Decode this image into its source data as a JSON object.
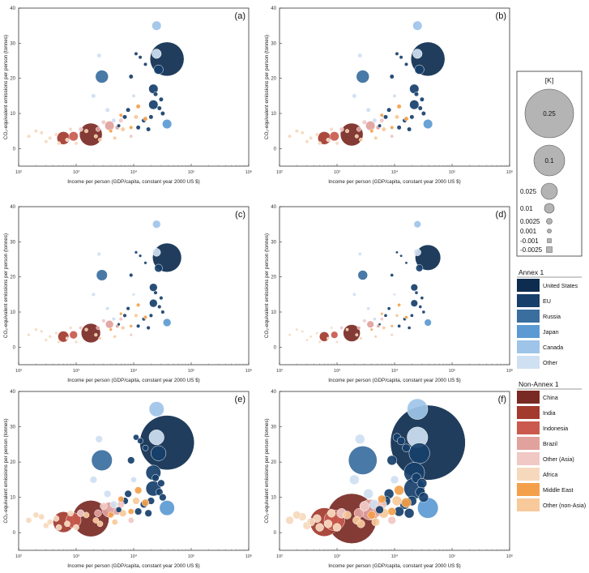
{
  "colors": {
    "us": "#0d2c4f",
    "eu": "#163f6b",
    "russia": "#3a6e9e",
    "japan": "#5c9ad3",
    "canada": "#9ec4e9",
    "other_a1": "#cfe0f2",
    "china": "#7a2a24",
    "india": "#a33a2e",
    "indonesia": "#c95a4d",
    "brazil": "#e1a19c",
    "other_asia": "#f0c8c4",
    "africa": "#f6d9bd",
    "middle_east": "#f4a04a",
    "other_nonasia": "#f8c99a"
  },
  "legend_k": {
    "title": "[K]",
    "entries": [
      "0.25",
      "0.1",
      "0.025",
      "0.01",
      "0.0025",
      "0.001",
      "-0.001",
      "-0.0025"
    ]
  },
  "legend_annex1": {
    "title": "Annex 1",
    "entries": [
      "United States",
      "EU",
      "Russia",
      "Japan",
      "Canada",
      "Other"
    ]
  },
  "legend_nonannex1": {
    "title": "Non-Annex 1",
    "entries": [
      "China",
      "India",
      "Indonesia",
      "Brazil",
      "Other (Asia)",
      "Africa",
      "Middle East",
      "Other (non-Asia)"
    ]
  },
  "chart_data": [
    {
      "type": "scatter",
      "panel": "(a)",
      "xlabel": "Income per person (GDP/capita, constant year 2000 US $)",
      "ylabel": "CO₂-equivalent emissions per person (tonnes)",
      "xscale": "log",
      "xlim": [
        100,
        1000000
      ],
      "ylim": [
        -5,
        40
      ],
      "xticks": [
        "10²",
        "10³",
        "10⁴",
        "10⁵",
        "10⁶"
      ],
      "yticks": [
        "0",
        "10",
        "20",
        "30",
        "40"
      ],
      "size_scale": 1.0
    },
    {
      "type": "scatter",
      "panel": "(b)",
      "xlabel": "Income per person (GDP/capita, constant year 2000 US $)",
      "ylabel": "CO₂-equivalent emissions per person (tonnes)",
      "xscale": "log",
      "xlim": [
        100,
        1000000
      ],
      "ylim": [
        -5,
        40
      ],
      "xticks": [
        "10²",
        "10³",
        "10⁴",
        "10⁵",
        "10⁶"
      ],
      "yticks": [
        "0",
        "10",
        "20",
        "30",
        "40"
      ],
      "size_scale": 1.0
    },
    {
      "type": "scatter",
      "panel": "(c)",
      "xlabel": "Income per person (GDP/capita, constant year 2000 US $)",
      "ylabel": "CO₂-equivalent emissions per person (tonnes)",
      "xscale": "log",
      "xlim": [
        100,
        1000000
      ],
      "ylim": [
        -5,
        40
      ],
      "xticks": [
        "10²",
        "10³",
        "10⁴",
        "10⁵",
        "10⁶"
      ],
      "yticks": [
        "0",
        "10",
        "20",
        "30",
        "40"
      ],
      "size_scale": 0.85
    },
    {
      "type": "scatter",
      "panel": "(d)",
      "xlabel": "Income per person (GDP/capita, constant year 2000 US $)",
      "ylabel": "CO₂-equivalent emissions per person (tonnes)",
      "xscale": "log",
      "xlim": [
        100,
        1000000
      ],
      "ylim": [
        -5,
        40
      ],
      "xticks": [
        "10²",
        "10³",
        "10⁴",
        "10⁵",
        "10⁶"
      ],
      "yticks": [
        "0",
        "10",
        "20",
        "30",
        "40"
      ],
      "size_scale": 0.75
    },
    {
      "type": "scatter",
      "panel": "(e)",
      "xlabel": "Income per person (GDP/capita, constant year 2000 US $)",
      "ylabel": "CO₂-equivalent emissions per person (tonnes)",
      "xscale": "log",
      "xlim": [
        100,
        1000000
      ],
      "ylim": [
        -5,
        40
      ],
      "xticks": [
        "10²",
        "10³",
        "10⁴",
        "10⁵",
        "10⁶"
      ],
      "yticks": [
        "0",
        "10",
        "20",
        "30",
        "40"
      ],
      "size_scale": 1.6
    },
    {
      "type": "scatter",
      "panel": "(f)",
      "xlabel": "Income per person (GDP/capita, constant year 2000 US $)",
      "ylabel": "CO₂-equivalent emissions per person (tonnes)",
      "xscale": "log",
      "xlim": [
        100,
        1000000
      ],
      "ylim": [
        -5,
        40
      ],
      "xticks": [
        "10²",
        "10³",
        "10⁴",
        "10⁵",
        "10⁶"
      ],
      "yticks": [
        "0",
        "10",
        "20",
        "30",
        "40"
      ],
      "size_scale": 2.2
    }
  ],
  "points": [
    {
      "group": "us",
      "x": 38000,
      "y": 25.5,
      "k": 0.25
    },
    {
      "group": "canada",
      "x": 25000,
      "y": 35,
      "k": 0.01
    },
    {
      "group": "other_a1",
      "x": 25000,
      "y": 27,
      "k": 0.01
    },
    {
      "group": "eu",
      "x": 27000,
      "y": 22.5,
      "k": 0.01
    },
    {
      "group": "eu",
      "x": 22000,
      "y": 17,
      "k": 0.01
    },
    {
      "group": "eu",
      "x": 24000,
      "y": 15.5,
      "k": 0.0025
    },
    {
      "group": "eu",
      "x": 30000,
      "y": 14,
      "k": 0.0025
    },
    {
      "group": "eu",
      "x": 22000,
      "y": 12.5,
      "k": 0.01
    },
    {
      "group": "eu",
      "x": 28000,
      "y": 11.5,
      "k": 0.0025
    },
    {
      "group": "eu",
      "x": 32000,
      "y": 10,
      "k": 0.0025
    },
    {
      "group": "eu",
      "x": 20000,
      "y": 9,
      "k": 0.0025
    },
    {
      "group": "eu",
      "x": 15000,
      "y": 8,
      "k": 0.0025
    },
    {
      "group": "eu",
      "x": 12000,
      "y": 6,
      "k": 0.0025
    },
    {
      "group": "eu",
      "x": 18000,
      "y": 5.5,
      "k": 0.0025
    },
    {
      "group": "eu",
      "x": 9000,
      "y": 20.5,
      "k": 0.0025
    },
    {
      "group": "eu",
      "x": 11000,
      "y": 27,
      "k": 0.001
    },
    {
      "group": "eu",
      "x": 13000,
      "y": 26,
      "k": 0.001
    },
    {
      "group": "eu",
      "x": 16000,
      "y": 24,
      "k": 0.001
    },
    {
      "group": "eu",
      "x": 8000,
      "y": 11,
      "k": 0.0025
    },
    {
      "group": "eu",
      "x": 7000,
      "y": 9,
      "k": 0.0025
    },
    {
      "group": "eu",
      "x": 5500,
      "y": 6.5,
      "k": 0.001
    },
    {
      "group": "russia",
      "x": 2800,
      "y": 20.5,
      "k": 0.025
    },
    {
      "group": "japan",
      "x": 38000,
      "y": 7,
      "k": 0.01
    },
    {
      "group": "other_a1",
      "x": 2000,
      "y": 15,
      "k": 0.0025
    },
    {
      "group": "other_a1",
      "x": 3500,
      "y": 11,
      "k": 0.0025
    },
    {
      "group": "other_a1",
      "x": 4500,
      "y": 8,
      "k": 0.0025
    },
    {
      "group": "other_a1",
      "x": 2500,
      "y": 26.5,
      "k": 0.0025
    },
    {
      "group": "other_a1",
      "x": 10000,
      "y": 15,
      "k": 0.001
    },
    {
      "group": "china",
      "x": 1800,
      "y": 4,
      "k": 0.1
    },
    {
      "group": "india",
      "x": 600,
      "y": 3,
      "k": 0.025
    },
    {
      "group": "indonesia",
      "x": 900,
      "y": 3.5,
      "k": 0.01
    },
    {
      "group": "brazil",
      "x": 3800,
      "y": 6.5,
      "k": 0.01
    },
    {
      "group": "brazil",
      "x": 2400,
      "y": 5.5,
      "k": 0.0025
    },
    {
      "group": "brazil",
      "x": 5200,
      "y": 6,
      "k": 0.0025
    },
    {
      "group": "other_asia",
      "x": 1200,
      "y": 5.5,
      "k": 0.0025
    },
    {
      "group": "other_asia",
      "x": 3000,
      "y": 7.5,
      "k": 0.0025
    },
    {
      "group": "other_asia",
      "x": 6000,
      "y": 8,
      "k": 0.0025
    },
    {
      "group": "other_asia",
      "x": 9000,
      "y": 3.5,
      "k": 0.001
    },
    {
      "group": "africa",
      "x": 300,
      "y": 2,
      "k": 0.001
    },
    {
      "group": "africa",
      "x": 450,
      "y": 4,
      "k": 0.001
    },
    {
      "group": "africa",
      "x": 350,
      "y": 3,
      "k": 0.001
    },
    {
      "group": "africa",
      "x": 700,
      "y": 2.5,
      "k": 0.001
    },
    {
      "group": "africa",
      "x": 500,
      "y": 1.5,
      "k": 0.001
    },
    {
      "group": "africa",
      "x": 250,
      "y": 4.5,
      "k": 0.001
    },
    {
      "group": "africa",
      "x": 1000,
      "y": 1.5,
      "k": 0.001
    },
    {
      "group": "africa",
      "x": 150,
      "y": 3.5,
      "k": 0.001
    },
    {
      "group": "africa",
      "x": 200,
      "y": 5,
      "k": 0.001
    },
    {
      "group": "africa",
      "x": 800,
      "y": 5.5,
      "k": 0.001
    },
    {
      "group": "middle_east",
      "x": 12000,
      "y": 12,
      "k": 0.0025
    },
    {
      "group": "middle_east",
      "x": 16000,
      "y": 8.5,
      "k": 0.0025
    },
    {
      "group": "middle_east",
      "x": 6000,
      "y": 9.5,
      "k": 0.001
    },
    {
      "group": "middle_east",
      "x": 9000,
      "y": 6,
      "k": 0.001
    },
    {
      "group": "middle_east",
      "x": 4000,
      "y": 5,
      "k": 0.001
    },
    {
      "group": "other_nonasia",
      "x": 1500,
      "y": 5,
      "k": 0.001
    },
    {
      "group": "other_nonasia",
      "x": 2200,
      "y": 3.5,
      "k": 0.001
    },
    {
      "group": "other_nonasia",
      "x": 6500,
      "y": 5.5,
      "k": 0.0025
    },
    {
      "group": "other_nonasia",
      "x": 11000,
      "y": 9,
      "k": 0.0025
    },
    {
      "group": "other_nonasia",
      "x": 2600,
      "y": 2.5,
      "k": 0.001
    },
    {
      "group": "other_nonasia",
      "x": 4700,
      "y": 3,
      "k": 0.001
    }
  ]
}
